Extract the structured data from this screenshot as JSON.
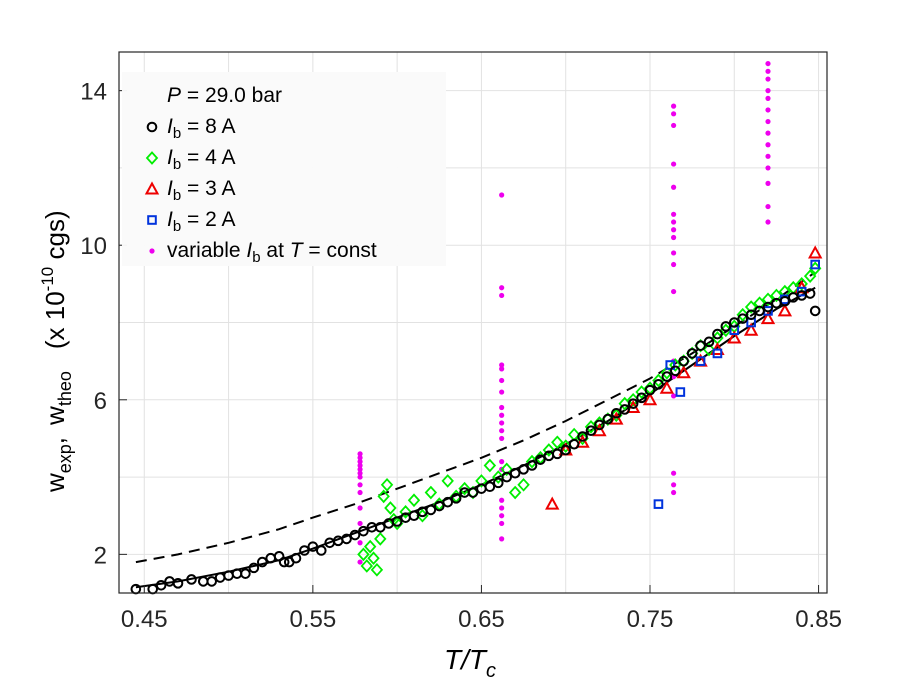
{
  "chart_data": {
    "type": "scatter",
    "title": "",
    "xlabel": {
      "main": "T/T",
      "sub": "c"
    },
    "ylabel": {
      "w1": "w",
      "w1_sub": "exp",
      "sep": ",",
      "w2": "w",
      "w2_sub": "theo",
      "units_pre": "(x 10",
      "units_exp": "-10",
      "units_post": " cgs)"
    },
    "xlim": [
      0.435,
      0.855
    ],
    "ylim": [
      1.0,
      15.0
    ],
    "xticks": [
      0.45,
      0.55,
      0.65,
      0.75,
      0.85
    ],
    "xtick_labels": [
      "0.45",
      "0.55",
      "0.65",
      "0.75",
      "0.85"
    ],
    "yticks": [
      2,
      6,
      10,
      14
    ],
    "ytick_labels": [
      "2",
      "6",
      "10",
      "14"
    ],
    "xgrid": [
      0.45,
      0.5,
      0.55,
      0.6,
      0.65,
      0.7,
      0.75,
      0.8,
      0.85
    ],
    "ygrid": [
      2,
      4,
      6,
      8,
      10,
      12,
      14
    ],
    "grid": true,
    "legend": {
      "placement": "top-left",
      "title": {
        "var": "P",
        "rest": " = 29.0 bar"
      },
      "entries": [
        {
          "marker": "circle",
          "color": "#000000",
          "label_var": "I",
          "label_sub": "b",
          "label_rest": " = 8 A"
        },
        {
          "marker": "diamond",
          "color": "#00ee00",
          "label_var": "I",
          "label_sub": "b",
          "label_rest": " = 4 A"
        },
        {
          "marker": "triangle",
          "color": "#ee0000",
          "label_var": "I",
          "label_sub": "b",
          "label_rest": " = 3 A"
        },
        {
          "marker": "square",
          "color": "#0033dd",
          "label_var": "I",
          "label_sub": "b",
          "label_rest": " = 2 A"
        },
        {
          "marker": "dot",
          "color": "#ee00ee",
          "label_pre": "variable ",
          "label_var": "I",
          "label_sub": "b",
          "label_rest": " at ",
          "label_var2": "T",
          "label_rest2": " = const"
        }
      ]
    },
    "fit_curves": [
      {
        "name": "solid",
        "style": "solid",
        "x": [
          0.445,
          0.47,
          0.5,
          0.53,
          0.55,
          0.575,
          0.6,
          0.625,
          0.65,
          0.675,
          0.7,
          0.725,
          0.75,
          0.775,
          0.8,
          0.825,
          0.848
        ],
        "y": [
          1.15,
          1.3,
          1.55,
          1.85,
          2.15,
          2.55,
          2.95,
          3.35,
          3.8,
          4.3,
          4.85,
          5.45,
          6.15,
          6.9,
          7.65,
          8.35,
          8.9
        ]
      },
      {
        "name": "dashed",
        "style": "dashed",
        "x": [
          0.445,
          0.47,
          0.5,
          0.53,
          0.55,
          0.575,
          0.6,
          0.625,
          0.65,
          0.675,
          0.7,
          0.725,
          0.75,
          0.775,
          0.8,
          0.825,
          0.848
        ],
        "y": [
          1.8,
          2.0,
          2.3,
          2.65,
          2.95,
          3.3,
          3.7,
          4.1,
          4.5,
          4.95,
          5.45,
          6.0,
          6.55,
          7.2,
          7.9,
          8.6,
          9.3
        ]
      }
    ],
    "series": [
      {
        "name": "Ib = 8 A",
        "marker": "circle",
        "color": "#000000",
        "x": [
          0.445,
          0.455,
          0.46,
          0.465,
          0.47,
          0.478,
          0.485,
          0.49,
          0.495,
          0.5,
          0.505,
          0.51,
          0.515,
          0.52,
          0.525,
          0.53,
          0.533,
          0.536,
          0.54,
          0.545,
          0.55,
          0.555,
          0.56,
          0.565,
          0.57,
          0.575,
          0.58,
          0.585,
          0.59,
          0.595,
          0.6,
          0.605,
          0.61,
          0.615,
          0.62,
          0.625,
          0.63,
          0.635,
          0.64,
          0.645,
          0.65,
          0.655,
          0.66,
          0.665,
          0.67,
          0.675,
          0.68,
          0.685,
          0.69,
          0.695,
          0.7,
          0.705,
          0.71,
          0.715,
          0.72,
          0.725,
          0.73,
          0.735,
          0.74,
          0.745,
          0.75,
          0.755,
          0.76,
          0.765,
          0.77,
          0.775,
          0.78,
          0.785,
          0.79,
          0.795,
          0.8,
          0.805,
          0.81,
          0.815,
          0.82,
          0.825,
          0.83,
          0.835,
          0.84,
          0.845,
          0.848
        ],
        "y": [
          1.1,
          1.1,
          1.2,
          1.3,
          1.25,
          1.35,
          1.3,
          1.3,
          1.4,
          1.45,
          1.5,
          1.5,
          1.65,
          1.8,
          1.9,
          1.95,
          1.8,
          1.8,
          1.9,
          2.1,
          2.2,
          2.1,
          2.3,
          2.35,
          2.4,
          2.5,
          2.6,
          2.7,
          2.7,
          2.8,
          2.85,
          2.95,
          3.0,
          3.1,
          3.15,
          3.25,
          3.35,
          3.45,
          3.6,
          3.6,
          3.7,
          3.75,
          3.85,
          4.0,
          4.1,
          4.2,
          4.3,
          4.45,
          4.55,
          4.6,
          4.7,
          4.85,
          5.05,
          5.2,
          5.35,
          5.5,
          5.65,
          5.75,
          5.9,
          6.05,
          6.25,
          6.4,
          6.6,
          6.75,
          7.0,
          7.2,
          7.4,
          7.5,
          7.7,
          7.9,
          8.0,
          8.1,
          8.2,
          8.3,
          8.4,
          8.5,
          8.55,
          8.65,
          8.7,
          8.75,
          8.3
        ]
      },
      {
        "name": "Ib = 4 A",
        "marker": "diamond",
        "color": "#00ee00",
        "x": [
          0.58,
          0.582,
          0.584,
          0.586,
          0.588,
          0.59,
          0.592,
          0.594,
          0.596,
          0.598,
          0.6,
          0.605,
          0.61,
          0.615,
          0.62,
          0.625,
          0.63,
          0.635,
          0.64,
          0.645,
          0.65,
          0.655,
          0.66,
          0.665,
          0.67,
          0.675,
          0.68,
          0.685,
          0.69,
          0.695,
          0.7,
          0.705,
          0.71,
          0.715,
          0.72,
          0.725,
          0.73,
          0.735,
          0.74,
          0.745,
          0.75,
          0.755,
          0.76,
          0.765,
          0.77,
          0.775,
          0.78,
          0.785,
          0.79,
          0.795,
          0.8,
          0.805,
          0.81,
          0.815,
          0.82,
          0.825,
          0.83,
          0.835,
          0.84,
          0.845,
          0.848
        ],
        "y": [
          2.0,
          1.7,
          2.2,
          1.9,
          1.6,
          2.4,
          3.5,
          3.8,
          3.2,
          2.9,
          2.8,
          3.1,
          3.4,
          3.0,
          3.6,
          3.3,
          3.9,
          3.5,
          3.7,
          3.6,
          3.9,
          4.3,
          4.0,
          4.2,
          3.6,
          3.8,
          4.4,
          4.5,
          4.7,
          4.9,
          4.8,
          5.1,
          5.0,
          5.3,
          5.4,
          5.5,
          5.6,
          5.9,
          6.0,
          6.2,
          6.3,
          6.5,
          6.7,
          6.9,
          7.0,
          7.2,
          7.4,
          7.3,
          7.6,
          7.8,
          7.9,
          8.2,
          8.4,
          8.5,
          8.6,
          8.7,
          8.8,
          8.9,
          9.0,
          9.2,
          9.4
        ]
      },
      {
        "name": "Ib = 3 A",
        "marker": "triangle",
        "color": "#ee0000",
        "x": [
          0.692,
          0.7,
          0.71,
          0.72,
          0.73,
          0.74,
          0.75,
          0.76,
          0.77,
          0.78,
          0.79,
          0.8,
          0.81,
          0.82,
          0.83,
          0.84,
          0.848
        ],
        "y": [
          3.3,
          4.7,
          4.9,
          5.2,
          5.5,
          5.8,
          6.0,
          6.3,
          6.7,
          7.0,
          7.3,
          7.6,
          7.8,
          8.1,
          8.3,
          8.9,
          9.8
        ]
      },
      {
        "name": "Ib = 2 A",
        "marker": "square",
        "color": "#0033dd",
        "x": [
          0.755,
          0.762,
          0.768,
          0.78,
          0.79,
          0.8,
          0.81,
          0.82,
          0.83,
          0.84,
          0.848
        ],
        "y": [
          3.3,
          6.9,
          6.2,
          7.0,
          7.2,
          7.8,
          8.0,
          8.3,
          8.6,
          8.8,
          9.5
        ]
      },
      {
        "name": "variable Ib at T = const",
        "marker": "dot",
        "color": "#ee00ee",
        "columns": [
          {
            "x": 0.578,
            "y": [
              1.8,
              2.3,
              2.8,
              3.2,
              3.6,
              3.8,
              4.0,
              4.1,
              4.2,
              4.3,
              4.4,
              4.5,
              4.6
            ]
          },
          {
            "x": 0.662,
            "y": [
              2.4,
              2.8,
              3.0,
              3.2,
              3.4,
              4.2,
              4.4,
              5.0,
              5.2,
              5.4,
              5.6,
              5.8,
              6.2,
              6.5,
              6.8,
              6.9,
              8.7,
              8.9,
              11.3
            ]
          },
          {
            "x": 0.764,
            "y": [
              3.6,
              3.8,
              4.1,
              6.1,
              6.6,
              7.0,
              8.8,
              9.5,
              9.8,
              10.2,
              10.4,
              10.6,
              10.8,
              11.5,
              12.1,
              13.1,
              13.4,
              13.6
            ]
          },
          {
            "x": 0.82,
            "y": [
              10.6,
              11.0,
              11.6,
              12.0,
              12.3,
              12.6,
              12.9,
              13.2,
              13.5,
              13.8,
              14.0,
              14.3,
              14.5,
              14.7
            ]
          }
        ]
      }
    ]
  }
}
